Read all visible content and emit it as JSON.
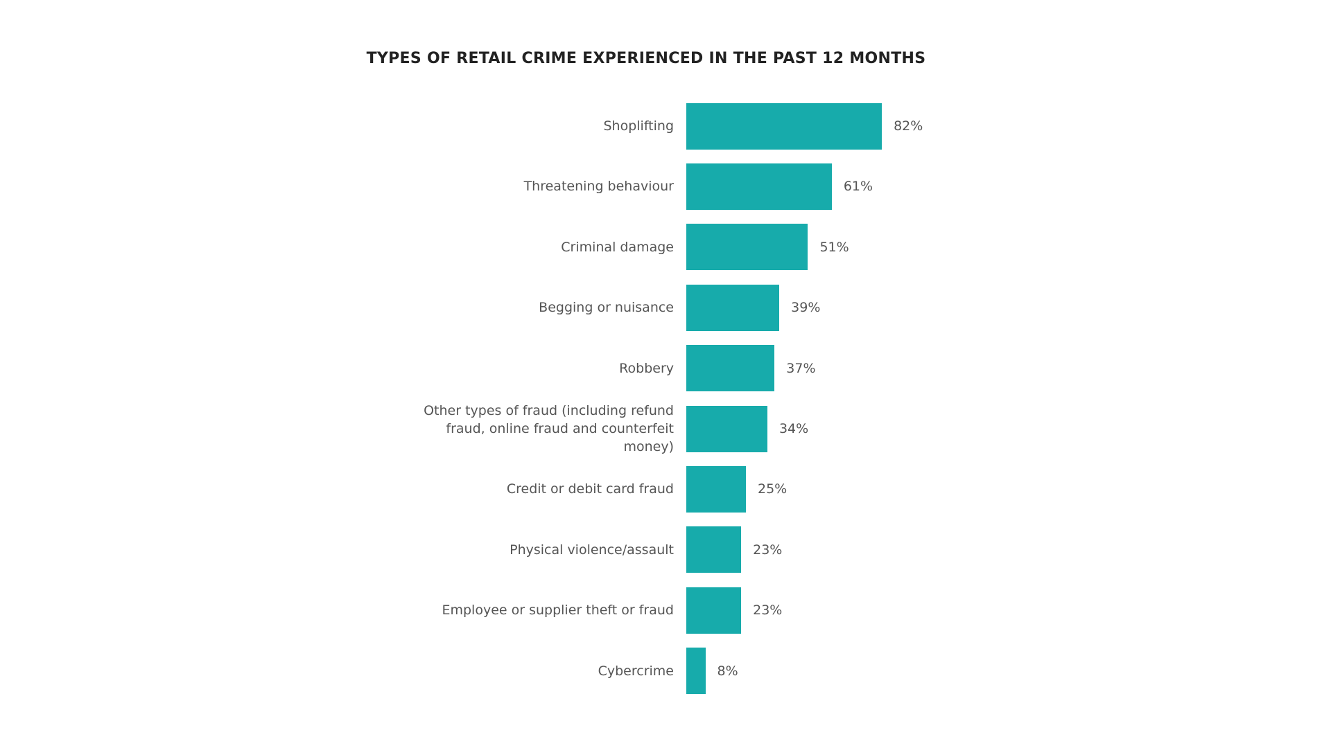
{
  "chart_data": {
    "type": "bar",
    "orientation": "horizontal",
    "title": "TYPES OF RETAIL CRIME EXPERIENCED IN THE PAST 12 MONTHS",
    "categories": [
      "Shoplifting",
      "Threatening behaviour",
      "Criminal damage",
      "Begging or nuisance",
      "Robbery",
      "Other types of fraud (including refund fraud, online fraud and counterfeit money)",
      "Credit or debit card fraud",
      "Physical violence/assault",
      "Employee or supplier theft or fraud",
      "Cybercrime"
    ],
    "values": [
      82,
      61,
      51,
      39,
      37,
      34,
      25,
      23,
      23,
      8
    ],
    "value_labels": [
      "82%",
      "61%",
      "51%",
      "39%",
      "37%",
      "34%",
      "25%",
      "23%",
      "23%",
      "8%"
    ],
    "color": "#17abab"
  }
}
